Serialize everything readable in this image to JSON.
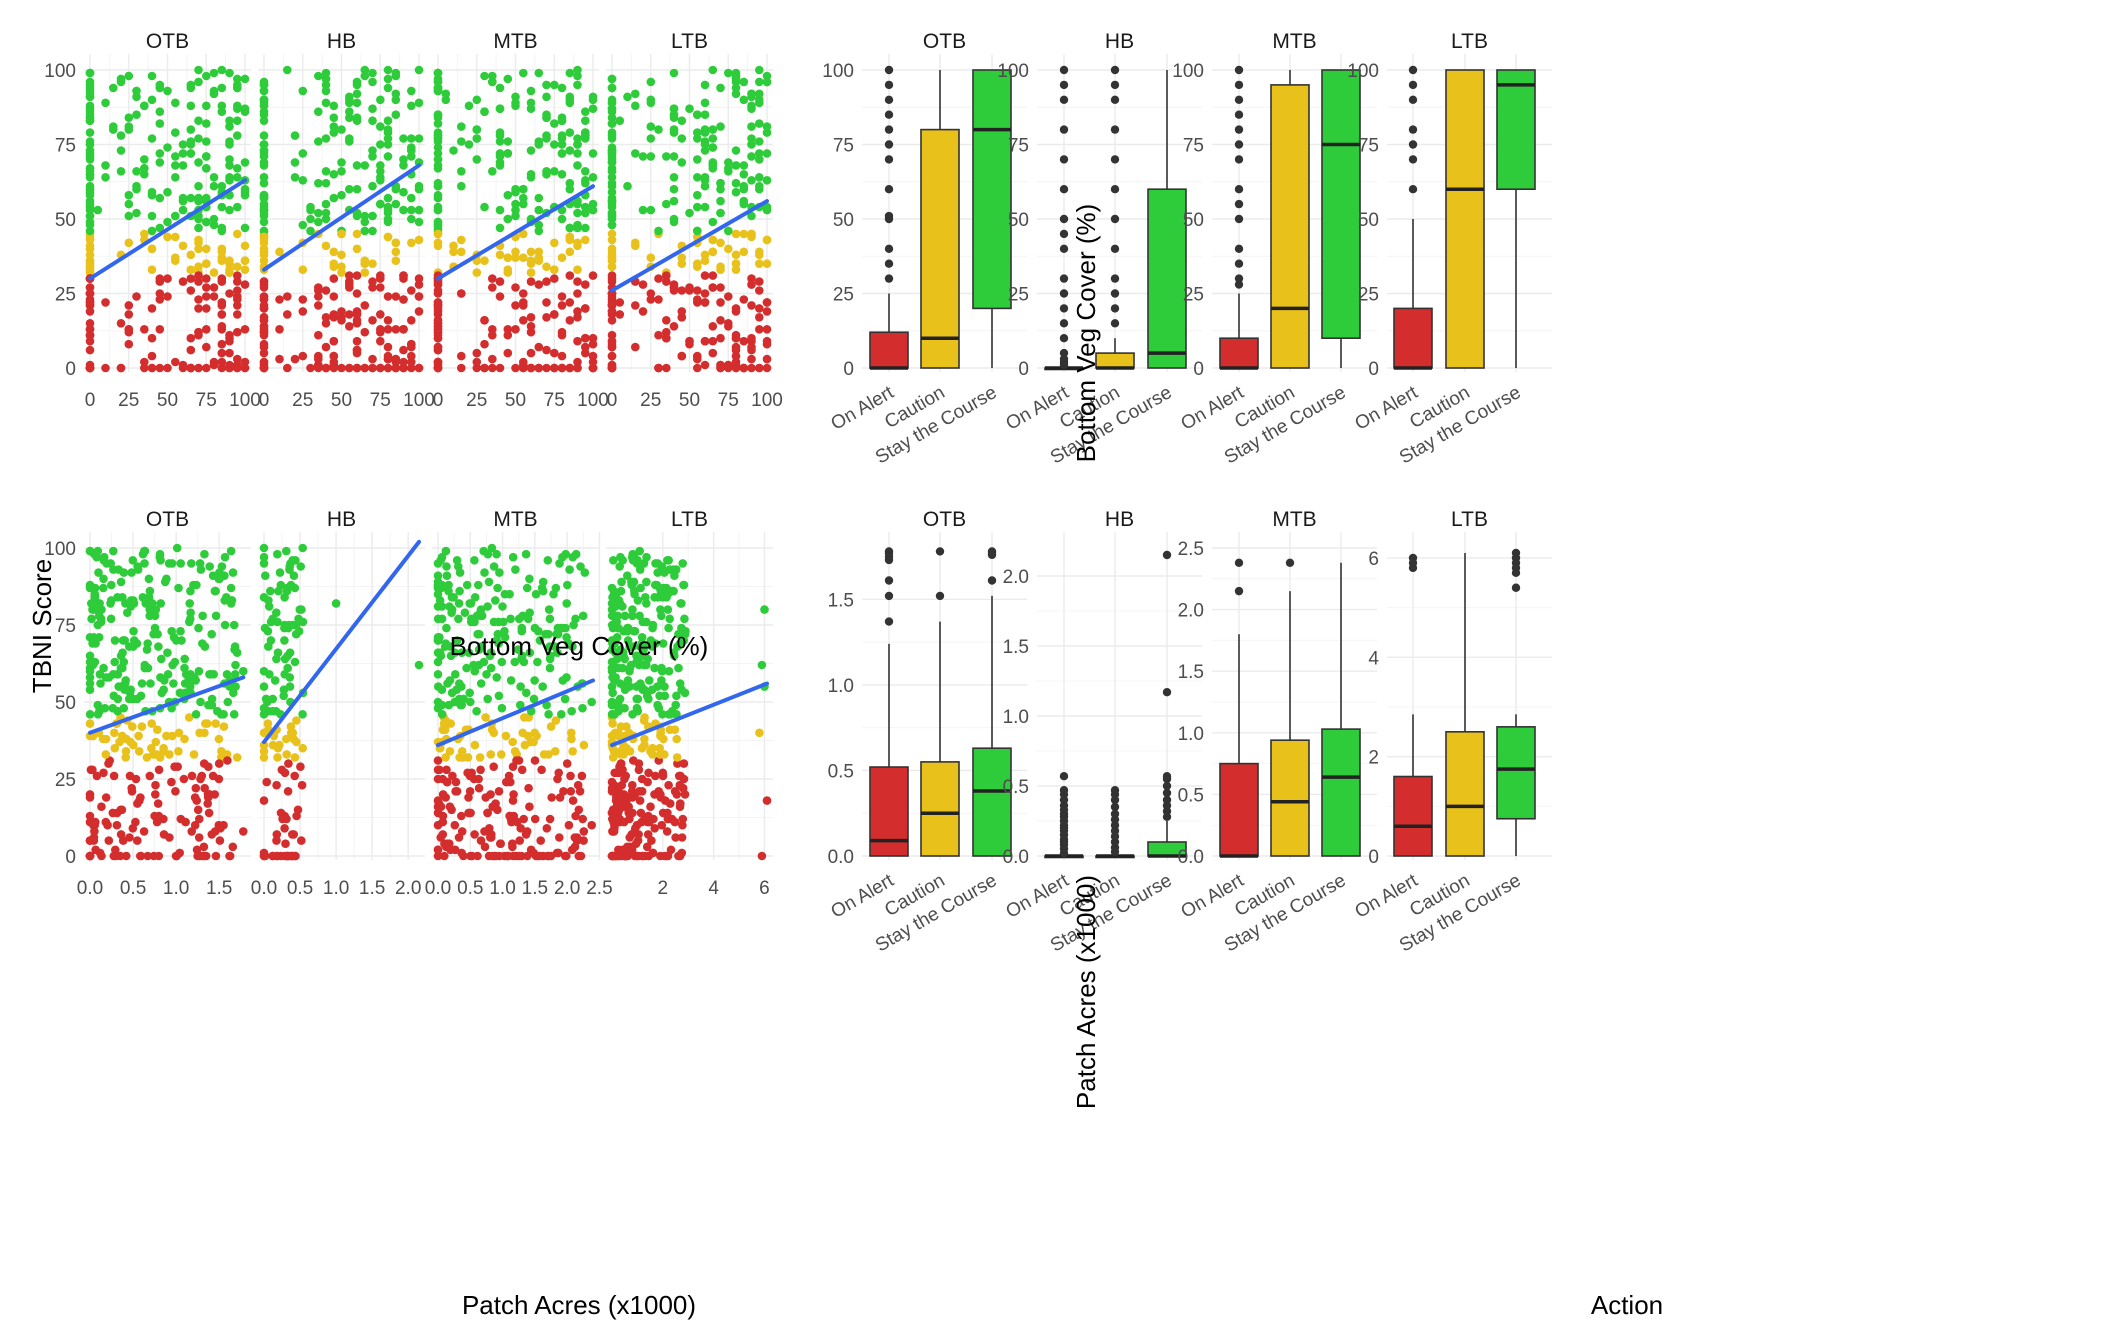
{
  "colors": {
    "on_alert": "#d42d2d",
    "caution": "#e9c11b",
    "stay_the_course": "#2ecc3a",
    "trend": "#3366ee",
    "outlier": "#333333"
  },
  "labels": {
    "tbni_score": "TBNI Score",
    "bottom_veg_cover_x": "Bottom Veg Cover (%)",
    "patch_acres_x": "Patch Acres (x1000)",
    "bottom_veg_cover_y": "Bottom Veg Cover (%)",
    "patch_acres_y": "Patch Acres (x1000)",
    "action": "Action"
  },
  "chart_data": [
    {
      "type": "scatter",
      "id": "scatter-bottom-veg",
      "xlabel": "Bottom Veg Cover (%)",
      "ylabel": "TBNI Score",
      "ylim": [
        0,
        100
      ],
      "y_ticks": [
        0,
        25,
        50,
        75,
        100
      ],
      "category_bands": [
        {
          "name": "On Alert",
          "y_range": [
            0,
            31
          ]
        },
        {
          "name": "Caution",
          "y_range": [
            32,
            45
          ]
        },
        {
          "name": "Stay the Course",
          "y_range": [
            46,
            100
          ]
        }
      ],
      "panels": [
        {
          "name": "OTB",
          "xlim": [
            0,
            100
          ],
          "x_ticks": [
            0,
            25,
            50,
            75,
            100
          ],
          "trend": {
            "x": [
              0,
              100
            ],
            "y": [
              30,
              63
            ]
          }
        },
        {
          "name": "HB",
          "xlim": [
            0,
            100
          ],
          "x_ticks": [
            0,
            25,
            50,
            75,
            100
          ],
          "trend": {
            "x": [
              0,
              100
            ],
            "y": [
              33,
              68
            ]
          }
        },
        {
          "name": "MTB",
          "xlim": [
            0,
            100
          ],
          "x_ticks": [
            0,
            25,
            50,
            75,
            100
          ],
          "trend": {
            "x": [
              0,
              100
            ],
            "y": [
              30,
              61
            ]
          }
        },
        {
          "name": "LTB",
          "xlim": [
            0,
            100
          ],
          "x_ticks": [
            0,
            25,
            50,
            75,
            100
          ],
          "trend": {
            "x": [
              0,
              100
            ],
            "y": [
              26,
              56
            ]
          }
        }
      ]
    },
    {
      "type": "scatter",
      "id": "scatter-patch-acres",
      "xlabel": "Patch Acres (x1000)",
      "ylabel": "TBNI Score",
      "ylim": [
        0,
        100
      ],
      "y_ticks": [
        0,
        25,
        50,
        75,
        100
      ],
      "category_bands": [
        {
          "name": "On Alert",
          "y_range": [
            0,
            31
          ]
        },
        {
          "name": "Caution",
          "y_range": [
            32,
            45
          ]
        },
        {
          "name": "Stay the Course",
          "y_range": [
            46,
            100
          ]
        }
      ],
      "panels": [
        {
          "name": "OTB",
          "xlim": [
            0,
            1.8
          ],
          "x_ticks": [
            0.0,
            0.5,
            1.0,
            1.5
          ],
          "x_tick_labels": [
            "0.0",
            "0.5",
            "1.0",
            "1.5"
          ],
          "trend": {
            "x": [
              0,
              1.78
            ],
            "y": [
              40,
              58
            ]
          }
        },
        {
          "name": "HB",
          "xlim": [
            0,
            2.15
          ],
          "x_ticks": [
            0.0,
            0.5,
            1.0,
            1.5,
            2.0
          ],
          "x_tick_labels": [
            "0.0",
            "0.5",
            "1.0",
            "1.5",
            "2.0"
          ],
          "trend": {
            "x": [
              0,
              2.15
            ],
            "y": [
              37,
              102
            ]
          }
        },
        {
          "name": "MTB",
          "xlim": [
            0,
            2.4
          ],
          "x_ticks": [
            0.0,
            0.5,
            1.0,
            1.5,
            2.0,
            2.5
          ],
          "x_tick_labels": [
            "0.0",
            "0.5",
            "1.0",
            "1.5",
            "2.0",
            "2.5"
          ],
          "trend": {
            "x": [
              0,
              2.4
            ],
            "y": [
              36,
              57
            ]
          }
        },
        {
          "name": "LTB",
          "xlim": [
            0,
            6.1
          ],
          "x_ticks": [
            2,
            4,
            6
          ],
          "x_tick_labels": [
            "2",
            "4",
            "6"
          ],
          "trend": {
            "x": [
              0,
              6.1
            ],
            "y": [
              36,
              56
            ]
          }
        }
      ]
    },
    {
      "type": "box",
      "id": "box-bottom-veg",
      "xlabel": "Action",
      "ylabel": "Bottom Veg Cover (%)",
      "categories": [
        "On Alert",
        "Caution",
        "Stay the Course"
      ],
      "panels": [
        {
          "name": "OTB",
          "ylim": [
            0,
            100
          ],
          "y_ticks": [
            0,
            25,
            50,
            75,
            100
          ],
          "y_tick_labels": [
            "0",
            "25",
            "50",
            "75",
            "100"
          ],
          "boxes": [
            {
              "category": "On Alert",
              "q1": 0,
              "median": 0,
              "q3": 12,
              "whisker_low": 0,
              "whisker_high": 25,
              "outliers": [
                30,
                35,
                40,
                50,
                51,
                60,
                70,
                75,
                80,
                85,
                90,
                95,
                100
              ]
            },
            {
              "category": "Caution",
              "q1": 0,
              "median": 10,
              "q3": 80,
              "whisker_low": 0,
              "whisker_high": 100,
              "outliers": []
            },
            {
              "category": "Stay the Course",
              "q1": 20,
              "median": 80,
              "q3": 100,
              "whisker_low": 0,
              "whisker_high": 100,
              "outliers": []
            }
          ]
        },
        {
          "name": "HB",
          "ylim": [
            0,
            100
          ],
          "y_ticks": [
            0,
            25,
            50,
            75,
            100
          ],
          "y_tick_labels": [
            "0",
            "25",
            "50",
            "75",
            "100"
          ],
          "boxes": [
            {
              "category": "On Alert",
              "q1": 0,
              "median": 0,
              "q3": 0,
              "whisker_low": 0,
              "whisker_high": 0,
              "outliers": [
                1,
                2,
                3,
                5,
                10,
                15,
                20,
                25,
                30,
                40,
                45,
                50,
                60,
                70,
                80,
                90,
                95,
                100
              ]
            },
            {
              "category": "Caution",
              "q1": 0,
              "median": 0,
              "q3": 5,
              "whisker_low": 0,
              "whisker_high": 10,
              "outliers": [
                15,
                20,
                25,
                30,
                40,
                50,
                60,
                70,
                80,
                90,
                95,
                100
              ]
            },
            {
              "category": "Stay the Course",
              "q1": 0,
              "median": 5,
              "q3": 60,
              "whisker_low": 0,
              "whisker_high": 100,
              "outliers": []
            }
          ]
        },
        {
          "name": "MTB",
          "ylim": [
            0,
            100
          ],
          "y_ticks": [
            0,
            25,
            50,
            75,
            100
          ],
          "y_tick_labels": [
            "0",
            "25",
            "50",
            "75",
            "100"
          ],
          "boxes": [
            {
              "category": "On Alert",
              "q1": 0,
              "median": 0,
              "q3": 10,
              "whisker_low": 0,
              "whisker_high": 25,
              "outliers": [
                28,
                30,
                35,
                40,
                50,
                55,
                60,
                70,
                75,
                80,
                85,
                90,
                95,
                100
              ]
            },
            {
              "category": "Caution",
              "q1": 0,
              "median": 20,
              "q3": 95,
              "whisker_low": 0,
              "whisker_high": 100,
              "outliers": []
            },
            {
              "category": "Stay the Course",
              "q1": 10,
              "median": 75,
              "q3": 100,
              "whisker_low": 0,
              "whisker_high": 100,
              "outliers": []
            }
          ]
        },
        {
          "name": "LTB",
          "ylim": [
            0,
            100
          ],
          "y_ticks": [
            0,
            25,
            50,
            75,
            100
          ],
          "y_tick_labels": [
            "0",
            "25",
            "50",
            "75",
            "100"
          ],
          "boxes": [
            {
              "category": "On Alert",
              "q1": 0,
              "median": 0,
              "q3": 20,
              "whisker_low": 0,
              "whisker_high": 50,
              "outliers": [
                60,
                70,
                75,
                80,
                90,
                95,
                100
              ]
            },
            {
              "category": "Caution",
              "q1": 0,
              "median": 60,
              "q3": 100,
              "whisker_low": 0,
              "whisker_high": 100,
              "outliers": []
            },
            {
              "category": "Stay the Course",
              "q1": 60,
              "median": 95,
              "q3": 100,
              "whisker_low": 0,
              "whisker_high": 100,
              "outliers": []
            }
          ]
        }
      ]
    },
    {
      "type": "box",
      "id": "box-patch-acres",
      "xlabel": "Action",
      "ylabel": "Patch Acres (x1000)",
      "categories": [
        "On Alert",
        "Caution",
        "Stay the Course"
      ],
      "panels": [
        {
          "name": "OTB",
          "ylim": [
            0,
            1.8
          ],
          "y_ticks": [
            0.0,
            0.5,
            1.0,
            1.5
          ],
          "y_tick_labels": [
            "0.0",
            "0.5",
            "1.0",
            "1.5"
          ],
          "boxes": [
            {
              "category": "On Alert",
              "q1": 0,
              "median": 0.09,
              "q3": 0.52,
              "whisker_low": 0,
              "whisker_high": 1.24,
              "outliers": [
                1.37,
                1.52,
                1.61,
                1.73,
                1.75,
                1.77,
                1.78
              ]
            },
            {
              "category": "Caution",
              "q1": 0,
              "median": 0.25,
              "q3": 0.55,
              "whisker_low": 0,
              "whisker_high": 1.37,
              "outliers": [
                1.52,
                1.78
              ]
            },
            {
              "category": "Stay the Course",
              "q1": 0,
              "median": 0.38,
              "q3": 0.63,
              "whisker_low": 0,
              "whisker_high": 1.52,
              "outliers": [
                1.61,
                1.76,
                1.77,
                1.78
              ]
            }
          ]
        },
        {
          "name": "HB",
          "ylim": [
            0,
            2.2
          ],
          "y_ticks": [
            0.0,
            0.5,
            1.0,
            1.5,
            2.0
          ],
          "y_tick_labels": [
            "0.0",
            "0.5",
            "1.0",
            "1.5",
            "2.0"
          ],
          "boxes": [
            {
              "category": "On Alert",
              "q1": 0,
              "median": 0,
              "q3": 0,
              "whisker_low": 0,
              "whisker_high": 0,
              "outliers": [
                0.02,
                0.05,
                0.08,
                0.1,
                0.12,
                0.15,
                0.18,
                0.2,
                0.22,
                0.25,
                0.28,
                0.3,
                0.33,
                0.36,
                0.4,
                0.44,
                0.47,
                0.57
              ]
            },
            {
              "category": "Caution",
              "q1": 0,
              "median": 0,
              "q3": 0,
              "whisker_low": 0,
              "whisker_high": 0,
              "outliers": [
                0.03,
                0.06,
                0.1,
                0.14,
                0.18,
                0.22,
                0.26,
                0.3,
                0.35,
                0.4,
                0.44,
                0.47
              ]
            },
            {
              "category": "Stay the Course",
              "q1": 0,
              "median": 0,
              "q3": 0.1,
              "whisker_low": 0,
              "whisker_high": 0.25,
              "outliers": [
                0.28,
                0.32,
                0.36,
                0.4,
                0.45,
                0.5,
                0.55,
                0.57,
                1.17,
                2.15
              ]
            }
          ]
        },
        {
          "name": "MTB",
          "ylim": [
            0,
            2.5
          ],
          "y_ticks": [
            0.0,
            0.5,
            1.0,
            1.5,
            2.0,
            2.5
          ],
          "y_tick_labels": [
            "0.0",
            "0.5",
            "1.0",
            "1.5",
            "2.0",
            "2.5"
          ],
          "boxes": [
            {
              "category": "On Alert",
              "q1": 0,
              "median": 0,
              "q3": 0.75,
              "whisker_low": 0,
              "whisker_high": 1.8,
              "outliers": [
                2.15,
                2.38
              ]
            },
            {
              "category": "Caution",
              "q1": 0,
              "median": 0.44,
              "q3": 0.94,
              "whisker_low": 0,
              "whisker_high": 2.15,
              "outliers": [
                2.38
              ]
            },
            {
              "category": "Stay the Course",
              "q1": 0,
              "median": 0.64,
              "q3": 1.03,
              "whisker_low": 0,
              "whisker_high": 2.38,
              "outliers": []
            }
          ]
        },
        {
          "name": "LTB",
          "ylim": [
            0,
            6.2
          ],
          "y_ticks": [
            0,
            2,
            4,
            6
          ],
          "y_tick_labels": [
            "0",
            "2",
            "4",
            "6"
          ],
          "boxes": [
            {
              "category": "On Alert",
              "q1": 0,
              "median": 0.6,
              "q3": 1.6,
              "whisker_low": 0,
              "whisker_high": 2.85,
              "outliers": [
                5.8,
                5.9,
                6.0
              ]
            },
            {
              "category": "Caution",
              "q1": 0,
              "median": 1.0,
              "q3": 2.5,
              "whisker_low": 0,
              "whisker_high": 6.1,
              "outliers": []
            },
            {
              "category": "Stay the Course",
              "q1": 0.75,
              "median": 1.75,
              "q3": 2.6,
              "whisker_low": 0,
              "whisker_high": 2.85,
              "outliers": [
                5.4,
                5.7,
                5.8,
                5.9,
                6.0,
                6.1
              ]
            }
          ]
        }
      ]
    }
  ]
}
